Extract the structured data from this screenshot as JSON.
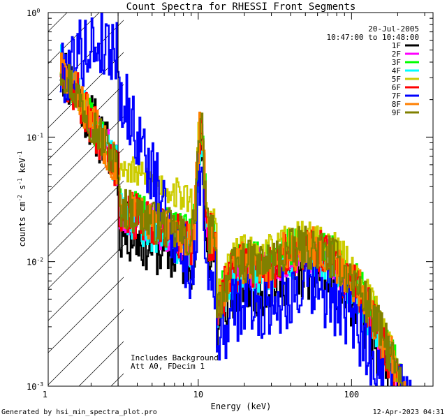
{
  "chart_data": {
    "type": "line",
    "title": "Count Spectra for RHESSI Front Segments",
    "xlabel": "Energy (keV)",
    "ylabel_parts": [
      "counts cm",
      "-2",
      " s",
      "-1",
      " keV",
      "-1"
    ],
    "xscale": "log",
    "yscale": "log",
    "xlim": [
      1.05,
      340
    ],
    "ylim": [
      0.001,
      1.0
    ],
    "x_tick_labels": [
      {
        "value": 1,
        "label": "1"
      },
      {
        "value": 10,
        "label": "10"
      },
      {
        "value": 100,
        "label": "100"
      }
    ],
    "y_tick_labels": [
      {
        "value": 1.0,
        "mant": "10",
        "exp": "0"
      },
      {
        "value": 0.1,
        "mant": "10",
        "exp": "-1"
      },
      {
        "value": 0.01,
        "mant": "10",
        "exp": "-2"
      },
      {
        "value": 0.001,
        "mant": "10",
        "exp": "-3"
      }
    ],
    "date": "20-Jul-2005",
    "time_range": "10:47:00 to 10:48:00",
    "attenuator_note": "Includes Background",
    "settings_note": "Att A0, FDecim 1",
    "hatched_below_keV": 3.0,
    "series": [
      {
        "name": "1F",
        "color": "#000000",
        "level": 0.0085,
        "bump": 0.06,
        "noise": 0.55,
        "seed": 11
      },
      {
        "name": "2F",
        "color": "#ff00ff",
        "level": 0.012,
        "bump": 0.09,
        "noise": 0.4,
        "seed": 23
      },
      {
        "name": "3F",
        "color": "#00ff00",
        "level": 0.014,
        "bump": 0.1,
        "noise": 0.35,
        "seed": 37
      },
      {
        "name": "4F",
        "color": "#00ffff",
        "level": 0.011,
        "bump": 0.08,
        "noise": 0.4,
        "seed": 41
      },
      {
        "name": "5F",
        "color": "#cccc00",
        "level": 0.016,
        "bump": 0.11,
        "noise": 0.3,
        "seed": 53
      },
      {
        "name": "6F",
        "color": "#ff0000",
        "level": 0.012,
        "bump": 0.09,
        "noise": 0.45,
        "seed": 67
      },
      {
        "name": "7F",
        "color": "#0000ff",
        "level": 0.006,
        "bump": 0.05,
        "noise": 0.65,
        "seed": 79
      },
      {
        "name": "8F",
        "color": "#ff7f00",
        "level": 0.013,
        "bump": 0.1,
        "noise": 0.4,
        "seed": 83
      },
      {
        "name": "9F",
        "color": "#808000",
        "level": 0.013,
        "bump": 0.1,
        "noise": 0.4,
        "seed": 97
      }
    ]
  },
  "footer": {
    "generator": "Generated by hsi_min_spectra_plot.pro",
    "timestamp": "12-Apr-2023 04:31"
  }
}
